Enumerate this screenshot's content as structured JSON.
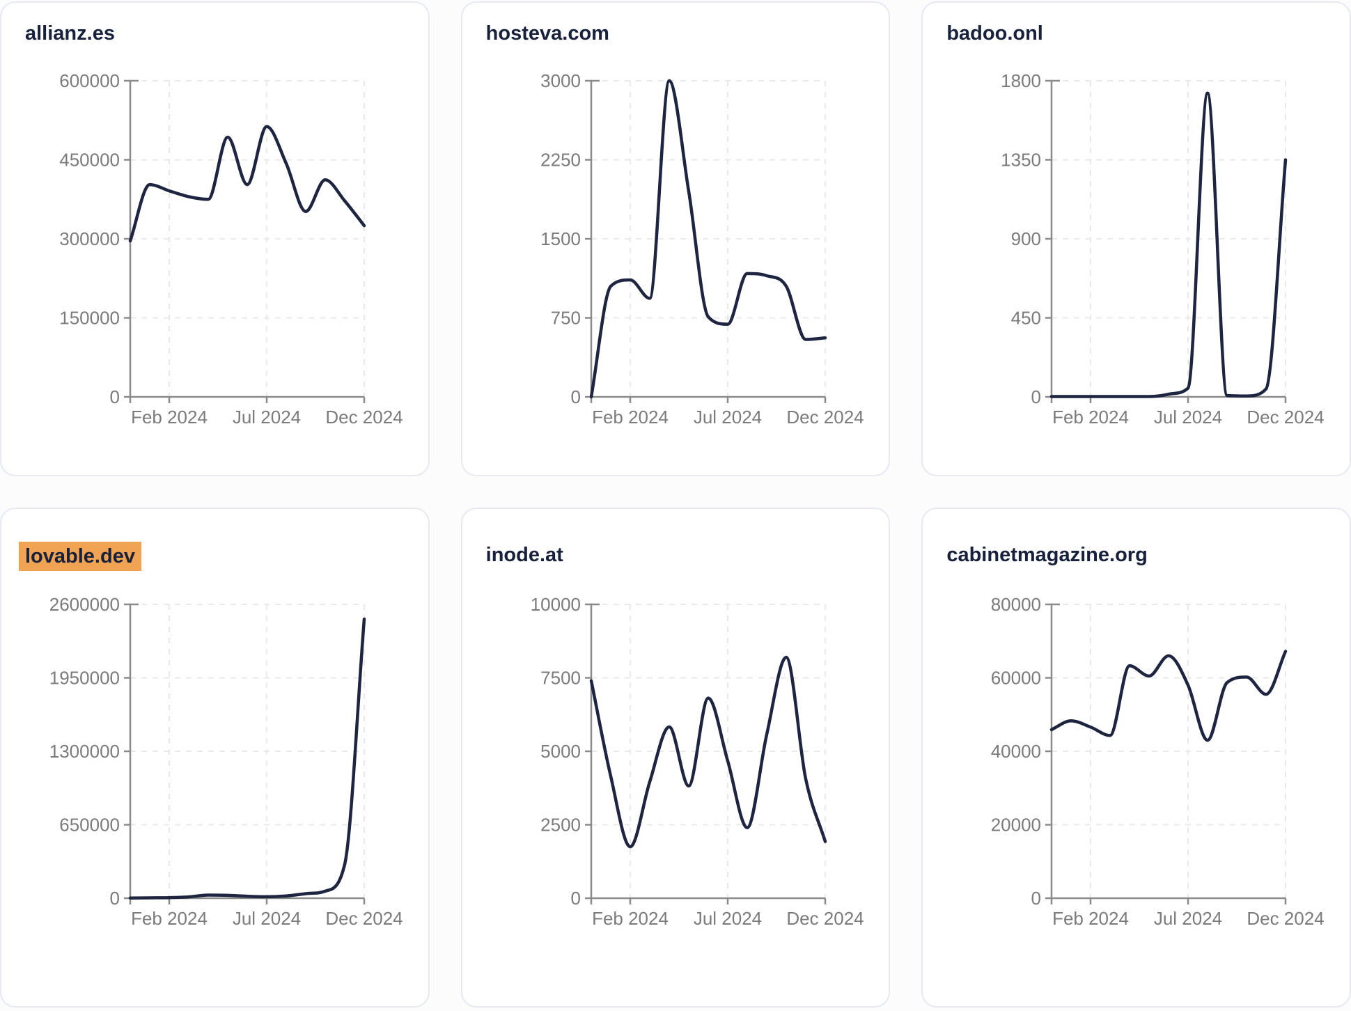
{
  "colors": {
    "line": "#1d2540",
    "title_text": "#17213b",
    "tick_text": "#7b7b7b",
    "axis": "#8a8a8a",
    "gridline": "#e9e9e9",
    "highlight": "#f0a353",
    "card_background": "#ffffff",
    "card_border": "#e6e9f2",
    "page_background": "#fcfcfd"
  },
  "x_tick_labels": [
    "Feb 2024",
    "Jul 2024",
    "Dec 2024"
  ],
  "chart_data": [
    {
      "type": "line",
      "title": "allianz.es",
      "highlighted": false,
      "x": [
        "Dec 2023",
        "Jan 2024",
        "Feb 2024",
        "Mar 2024",
        "Apr 2024",
        "May 2024",
        "Jun 2024",
        "Jul 2024",
        "Aug 2024",
        "Sep 2024",
        "Oct 2024",
        "Nov 2024",
        "Dec 2024"
      ],
      "values": [
        296000,
        403000,
        391000,
        380000,
        375000,
        493000,
        403000,
        513000,
        443000,
        352000,
        412000,
        372000,
        325000
      ],
      "y_ticks": [
        0,
        150000,
        300000,
        450000,
        600000
      ],
      "ylim": [
        0,
        600000
      ],
      "x_tick_labels": [
        "Feb 2024",
        "Jul 2024",
        "Dec 2024"
      ],
      "grid": true,
      "legend": false
    },
    {
      "type": "line",
      "title": "hosteva.com",
      "highlighted": false,
      "x": [
        "Dec 2023",
        "Jan 2024",
        "Feb 2024",
        "Mar 2024",
        "Apr 2024",
        "May 2024",
        "Jun 2024",
        "Jul 2024",
        "Aug 2024",
        "Sep 2024",
        "Oct 2024",
        "Nov 2024",
        "Dec 2024"
      ],
      "values": [
        0,
        1050,
        1110,
        935,
        3000,
        1950,
        760,
        690,
        1170,
        1150,
        1050,
        545,
        560
      ],
      "y_ticks": [
        0,
        750,
        1500,
        2250,
        3000
      ],
      "ylim": [
        0,
        3000
      ],
      "x_tick_labels": [
        "Feb 2024",
        "Jul 2024",
        "Dec 2024"
      ],
      "grid": true,
      "legend": false
    },
    {
      "type": "line",
      "title": "badoo.onl",
      "highlighted": false,
      "x": [
        "Dec 2023",
        "Jan 2024",
        "Feb 2024",
        "Mar 2024",
        "Apr 2024",
        "May 2024",
        "Jun 2024",
        "Jul 2024",
        "Aug 2024",
        "Sep 2024",
        "Oct 2024",
        "Nov 2024",
        "Dec 2024"
      ],
      "values": [
        2,
        2,
        2,
        2,
        2,
        2,
        15,
        50,
        1730,
        8,
        5,
        45,
        1350
      ],
      "y_ticks": [
        0,
        450,
        900,
        1350,
        1800
      ],
      "ylim": [
        0,
        1800
      ],
      "x_tick_labels": [
        "Feb 2024",
        "Jul 2024",
        "Dec 2024"
      ],
      "grid": true,
      "legend": false
    },
    {
      "type": "line",
      "title": "lovable.dev",
      "highlighted": true,
      "x": [
        "Dec 2023",
        "Jan 2024",
        "Feb 2024",
        "Mar 2024",
        "Apr 2024",
        "May 2024",
        "Jun 2024",
        "Jul 2024",
        "Aug 2024",
        "Sep 2024",
        "Oct 2024",
        "Nov 2024",
        "Dec 2024"
      ],
      "values": [
        2000,
        3000,
        5000,
        12000,
        28000,
        25000,
        17000,
        13000,
        20000,
        40000,
        62000,
        300000,
        2470000
      ],
      "y_ticks": [
        0,
        650000,
        1300000,
        1950000,
        2600000
      ],
      "ylim": [
        0,
        2600000
      ],
      "x_tick_labels": [
        "Feb 2024",
        "Jul 2024",
        "Dec 2024"
      ],
      "grid": true,
      "legend": false
    },
    {
      "type": "line",
      "title": "inode.at",
      "highlighted": false,
      "x": [
        "Dec 2023",
        "Jan 2024",
        "Feb 2024",
        "Mar 2024",
        "Apr 2024",
        "May 2024",
        "Jun 2024",
        "Jul 2024",
        "Aug 2024",
        "Sep 2024",
        "Oct 2024",
        "Nov 2024",
        "Dec 2024"
      ],
      "values": [
        7400,
        4150,
        1750,
        3960,
        5830,
        3820,
        6810,
        4670,
        2400,
        5570,
        8200,
        4060,
        1930
      ],
      "y_ticks": [
        0,
        2500,
        5000,
        7500,
        10000
      ],
      "ylim": [
        0,
        10000
      ],
      "x_tick_labels": [
        "Feb 2024",
        "Jul 2024",
        "Dec 2024"
      ],
      "grid": true,
      "legend": false
    },
    {
      "type": "line",
      "title": "cabinetmagazine.org",
      "highlighted": false,
      "x": [
        "Dec 2023",
        "Jan 2024",
        "Feb 2024",
        "Mar 2024",
        "Apr 2024",
        "May 2024",
        "Jun 2024",
        "Jul 2024",
        "Aug 2024",
        "Sep 2024",
        "Oct 2024",
        "Nov 2024",
        "Dec 2024"
      ],
      "values": [
        45900,
        48300,
        46600,
        44300,
        63300,
        60500,
        66000,
        58000,
        43000,
        58700,
        60200,
        55500,
        67200
      ],
      "y_ticks": [
        0,
        20000,
        40000,
        60000,
        80000
      ],
      "ylim": [
        0,
        80000
      ],
      "x_tick_labels": [
        "Feb 2024",
        "Jul 2024",
        "Dec 2024"
      ],
      "grid": true,
      "legend": false
    }
  ]
}
